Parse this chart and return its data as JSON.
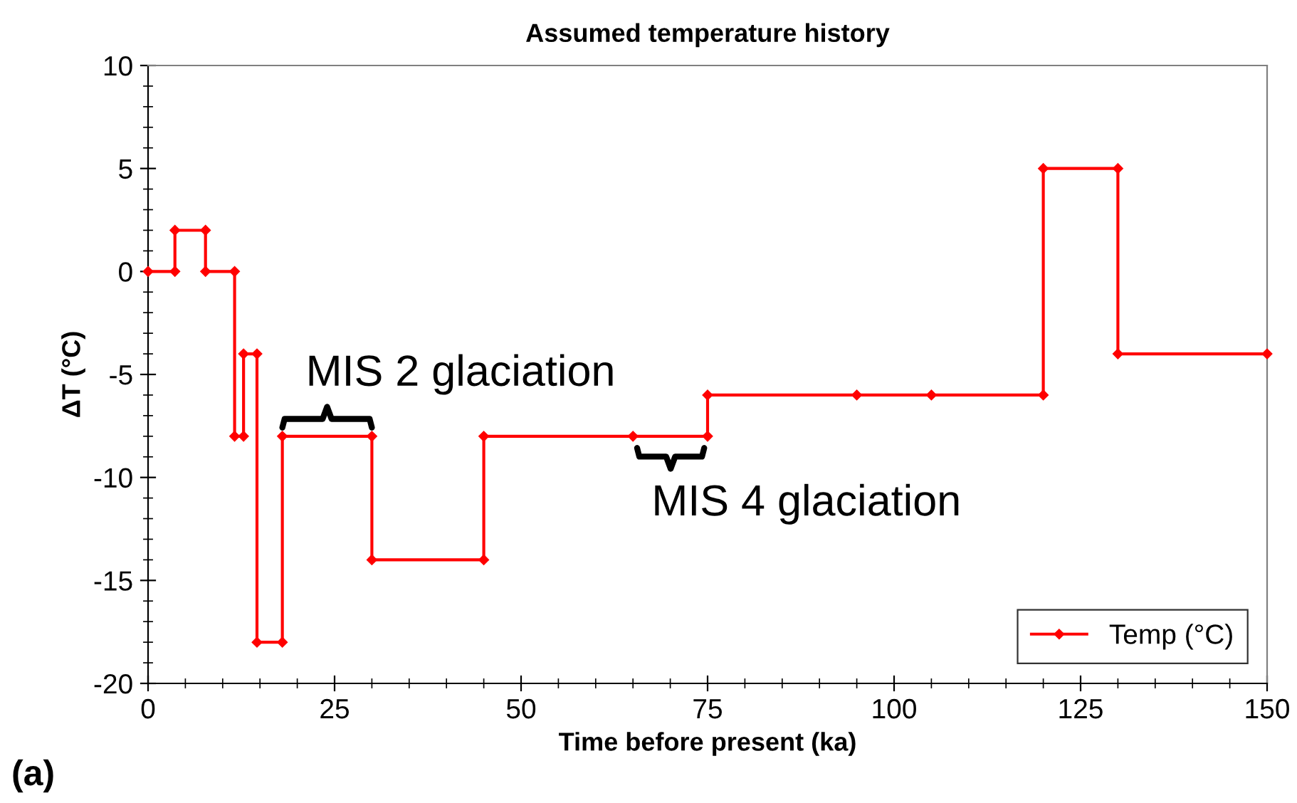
{
  "chart_data": {
    "type": "line",
    "title": "Assumed temperature history",
    "xlabel": "Time before present (ka)",
    "ylabel": "ΔT (°C)",
    "x": [
      0,
      3.6,
      3.6,
      7.7,
      7.7,
      11.6,
      11.6,
      12.8,
      12.8,
      14.6,
      14.6,
      18,
      18,
      30,
      30,
      45,
      45,
      65,
      75,
      75,
      95,
      105,
      120,
      120,
      130,
      130,
      150
    ],
    "series": [
      {
        "name": "Temp (°C)",
        "color": "#ff0000",
        "values": [
          0,
          0,
          2,
          2,
          0,
          0,
          -8,
          -8,
          -4,
          -4,
          -18,
          -18,
          -8,
          -8,
          -14,
          -14,
          -8,
          -8,
          -8,
          -6,
          -6,
          -6,
          -6,
          5,
          5,
          -4,
          -4
        ]
      }
    ],
    "xlim": [
      0,
      150
    ],
    "xticks": [
      0,
      25,
      50,
      75,
      100,
      125,
      150
    ],
    "ylim": [
      -20,
      10
    ],
    "yticks": [
      -20,
      -15,
      -10,
      -5,
      0,
      5,
      10
    ],
    "grid": false,
    "legend": "bottom right",
    "marker": "diamond",
    "line_style": "solid",
    "annotations": [
      "MIS 2 glaciation",
      "MIS 4 glaciation",
      "(a)"
    ]
  }
}
